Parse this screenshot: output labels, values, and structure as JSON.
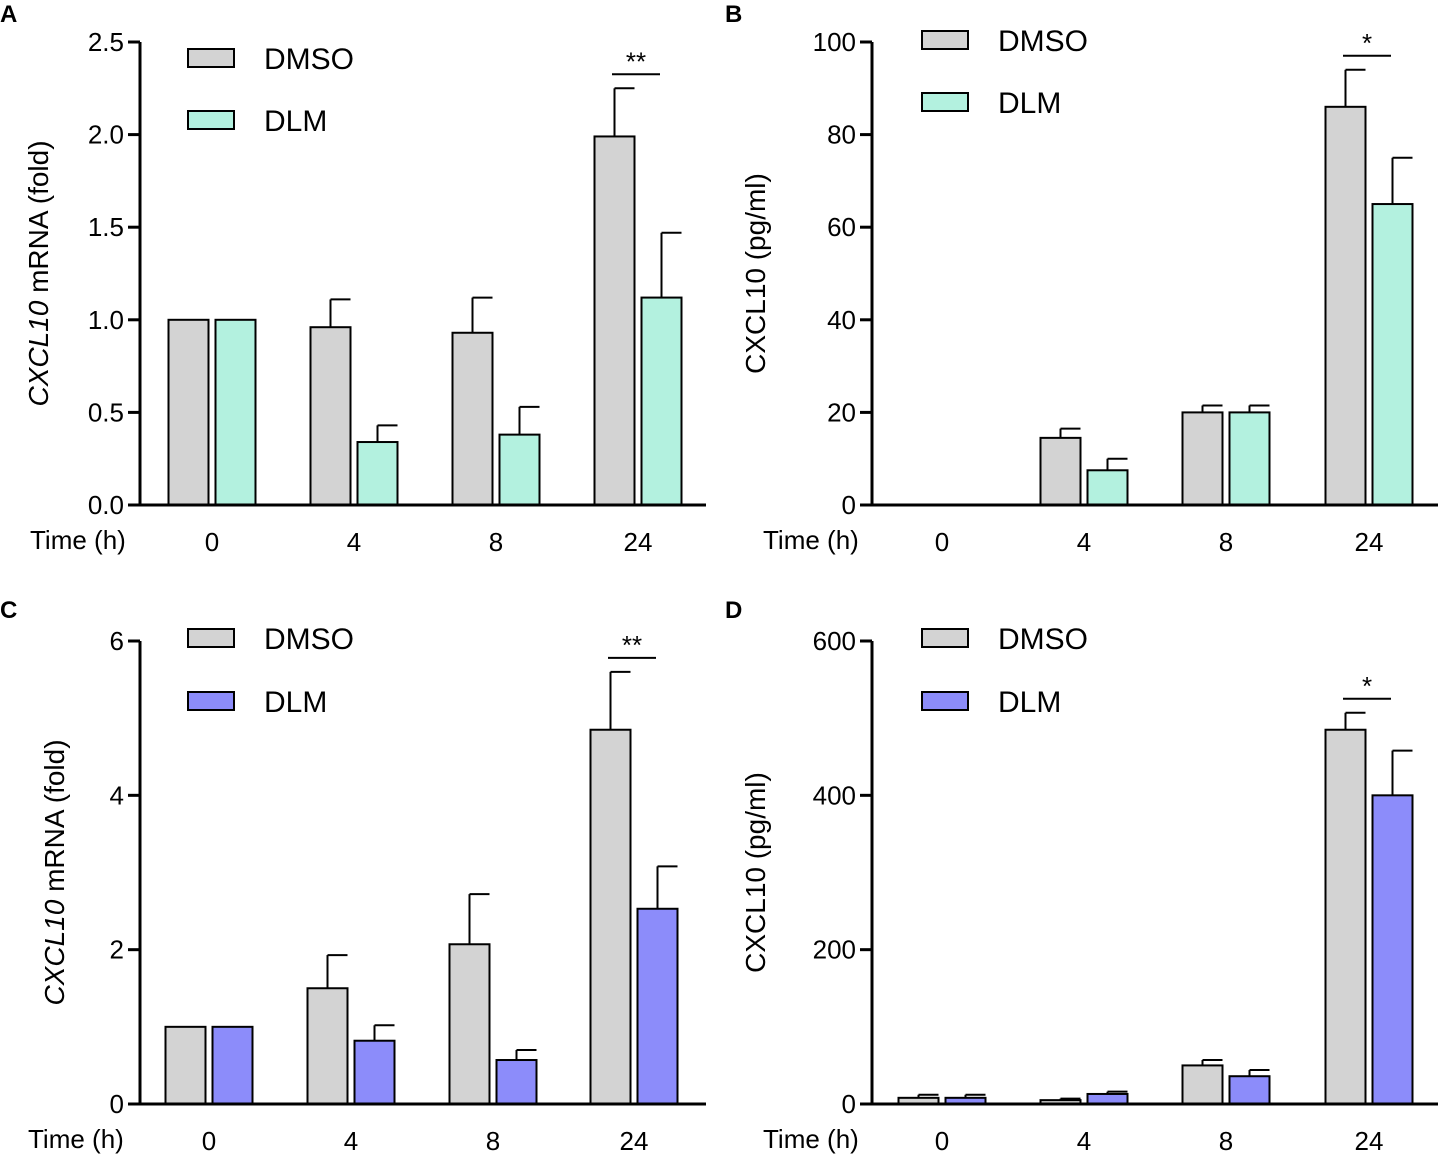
{
  "chart_data": [
    {
      "panel": "A",
      "type": "bar",
      "categories": [
        "0",
        "4",
        "8",
        "24"
      ],
      "xlabel": "Time (h)",
      "ylabel_italic": "CXCL10",
      "ylabel_rest": " mRNA (fold)",
      "ylim": [
        0,
        2.5
      ],
      "yticks": [
        "0.0",
        "0.5",
        "1.0",
        "1.5",
        "2.0",
        "2.5"
      ],
      "series": [
        {
          "name": "DMSO",
          "color": "#d3d3d3",
          "values": [
            1.0,
            0.96,
            0.93,
            1.99
          ],
          "errors": [
            0,
            0.15,
            0.19,
            0.26
          ]
        },
        {
          "name": "DLM",
          "color": "#b3f1df",
          "values": [
            1.0,
            0.34,
            0.38,
            1.12
          ],
          "errors": [
            0,
            0.09,
            0.15,
            0.35
          ]
        }
      ],
      "significance": [
        {
          "category": "24",
          "label": "**"
        }
      ]
    },
    {
      "panel": "B",
      "type": "bar",
      "categories": [
        "0",
        "4",
        "8",
        "24"
      ],
      "xlabel": "Time (h)",
      "ylabel_italic": "",
      "ylabel_rest": "CXCL10 (pg/ml)",
      "ylim": [
        0,
        100
      ],
      "yticks": [
        "0",
        "20",
        "40",
        "60",
        "80",
        "100"
      ],
      "series": [
        {
          "name": "DMSO",
          "color": "#d3d3d3",
          "values": [
            0,
            14.5,
            20,
            86
          ],
          "errors": [
            0,
            2,
            1.5,
            8
          ]
        },
        {
          "name": "DLM",
          "color": "#b3f1df",
          "values": [
            0,
            7.5,
            20,
            65
          ],
          "errors": [
            0,
            2.5,
            1.5,
            10
          ]
        }
      ],
      "significance": [
        {
          "category": "24",
          "label": "*"
        }
      ]
    },
    {
      "panel": "C",
      "type": "bar",
      "categories": [
        "0",
        "4",
        "8",
        "24"
      ],
      "xlabel": "Time (h)",
      "ylabel_italic": "CXCL10",
      "ylabel_rest": " mRNA (fold)",
      "ylim": [
        0,
        6
      ],
      "yticks": [
        "0",
        "2",
        "4",
        "6"
      ],
      "series": [
        {
          "name": "DMSO",
          "color": "#d3d3d3",
          "values": [
            1.0,
            1.5,
            2.07,
            4.85
          ],
          "errors": [
            0,
            0.43,
            0.65,
            0.75
          ]
        },
        {
          "name": "DLM",
          "color": "#8c8cfa",
          "values": [
            1.0,
            0.82,
            0.57,
            2.53
          ],
          "errors": [
            0,
            0.2,
            0.13,
            0.55
          ]
        }
      ],
      "significance": [
        {
          "category": "24",
          "label": "**"
        }
      ]
    },
    {
      "panel": "D",
      "type": "bar",
      "categories": [
        "0",
        "4",
        "8",
        "24"
      ],
      "xlabel": "Time (h)",
      "ylabel_italic": "",
      "ylabel_rest": "CXCL10 (pg/ml)",
      "ylim": [
        0,
        600
      ],
      "yticks": [
        "0",
        "200",
        "400",
        "600"
      ],
      "series": [
        {
          "name": "DMSO",
          "color": "#d3d3d3",
          "values": [
            8,
            5,
            50,
            485
          ],
          "errors": [
            4,
            2,
            7,
            22
          ]
        },
        {
          "name": "DLM",
          "color": "#8c8cfa",
          "values": [
            8,
            13,
            36,
            400
          ],
          "errors": [
            4,
            3,
            8,
            58
          ]
        }
      ],
      "significance": [
        {
          "category": "24",
          "label": "*"
        }
      ]
    }
  ]
}
